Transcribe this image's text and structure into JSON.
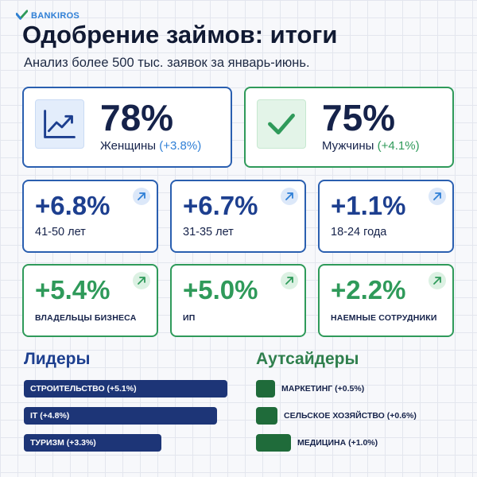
{
  "brand": {
    "name": "BANKIROS"
  },
  "header": {
    "title": "Одобрение займов: итоги",
    "subtitle": "Анализ более 500 тыс. заявок за январь-июнь."
  },
  "gender": [
    {
      "value": "78%",
      "label": "Женщины",
      "delta": "(+3.8%)",
      "icon": "trend-chart-icon",
      "color": "#2a5fb0"
    },
    {
      "value": "75%",
      "label": "Мужчины",
      "delta": "(+4.1%)",
      "icon": "checkmark-icon",
      "color": "#2f9a5a"
    }
  ],
  "age": [
    {
      "value": "+6.8%",
      "label": "41-50 лет"
    },
    {
      "value": "+6.7%",
      "label": "31-35 лет"
    },
    {
      "value": "+1.1%",
      "label": "18-24 года"
    }
  ],
  "occupation": [
    {
      "value": "+5.4%",
      "label": "ВЛАДЕЛЬЦЫ БИЗНЕСА"
    },
    {
      "value": "+5.0%",
      "label": "ИП"
    },
    {
      "value": "+2.2%",
      "label": "НАЕМНЫЕ СОТРУДНИКИ"
    }
  ],
  "leaders": {
    "title": "Лидеры",
    "items": [
      {
        "label": "СТРОИТЕЛЬСТВО (+5.1%)",
        "change": 5.1
      },
      {
        "label": "IT (+4.8%)",
        "change": 4.8
      },
      {
        "label": "ТУРИЗМ (+3.3%)",
        "change": 3.3
      }
    ]
  },
  "outsiders": {
    "title": "Аутсайдеры",
    "items": [
      {
        "label": "МАРКЕТИНГ (+0.5%)",
        "change": 0.5
      },
      {
        "label": "СЕЛЬСКОЕ ХОЗЯЙСТВО (+0.6%)",
        "change": 0.6
      },
      {
        "label": "МЕДИЦИНА (+1.0%)",
        "change": 1.0
      }
    ]
  },
  "colors": {
    "navy": "#1d3577",
    "blue_accent": "#2f7fd6",
    "green_accent": "#2f9a5a",
    "dark_green": "#1f6b3a"
  }
}
